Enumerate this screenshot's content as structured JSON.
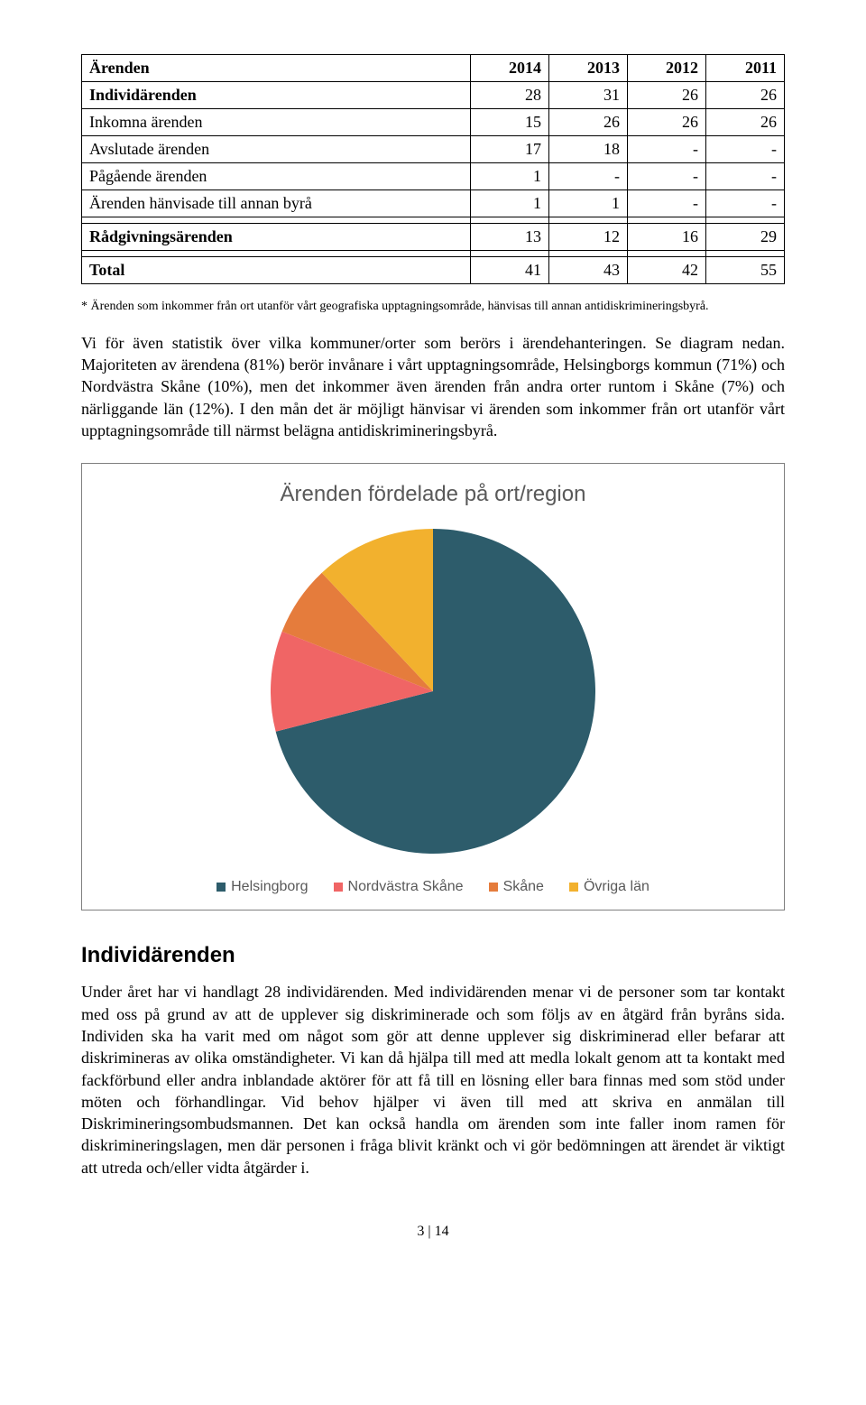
{
  "table": {
    "headers": [
      "Ärenden",
      "2014",
      "2013",
      "2012",
      "2011"
    ],
    "rows": [
      {
        "label": "Individärenden",
        "bold": true,
        "cells": [
          "28",
          "31",
          "26",
          "26"
        ]
      },
      {
        "label": "Inkomna ärenden",
        "bold": false,
        "cells": [
          "15",
          "26",
          "26",
          "26"
        ]
      },
      {
        "label": "Avslutade ärenden",
        "bold": false,
        "cells": [
          "17",
          "18",
          "-",
          "-"
        ]
      },
      {
        "label": "Pågående ärenden",
        "bold": false,
        "cells": [
          "1",
          "-",
          "-",
          "-"
        ]
      },
      {
        "label": "Ärenden hänvisade till annan byrå",
        "bold": false,
        "cells": [
          "1",
          "1",
          "-",
          "-"
        ]
      }
    ],
    "spacer_after": true,
    "section2": {
      "label": "Rådgivningsärenden",
      "bold": true,
      "cells": [
        "13",
        "12",
        "16",
        "29"
      ]
    },
    "total": {
      "label": "Total",
      "bold": true,
      "cells": [
        "41",
        "43",
        "42",
        "55"
      ]
    }
  },
  "footnote": "* Ärenden som inkommer från ort utanför vårt geografiska upptagningsområde, hänvisas till annan antidiskrimineringsbyrå.",
  "para1": "Vi för även statistik över vilka kommuner/orter som berörs i ärendehanteringen. Se diagram nedan. Majoriteten av ärendena (81%) berör invånare i vårt upptagningsområde, Helsingborgs kommun (71%) och Nordvästra Skåne (10%), men det inkommer även ärenden från andra orter runtom i Skåne (7%) och närliggande län (12%). I den mån det är möjligt hänvisar vi ärenden som inkommer från ort utanför vårt upptagningsområde till närmst belägna antidiskrimineringsbyrå.",
  "chart": {
    "type": "pie",
    "title": "Ärenden fördelade på ort/region",
    "title_fontsize": 24,
    "background_color": "#ffffff",
    "border_color": "#7f7f7f",
    "diameter": 360,
    "slices": [
      {
        "label": "Helsingborg",
        "value": 71,
        "color": "#2d5c6b"
      },
      {
        "label": "Nordvästra Skåne",
        "value": 10,
        "color": "#f06565"
      },
      {
        "label": "Skåne",
        "value": 7,
        "color": "#e57c3c"
      },
      {
        "label": "Övriga län",
        "value": 12,
        "color": "#f2b12e"
      }
    ],
    "start_angle_deg": -90,
    "legend_fontsize": 16,
    "legend_color": "#595959"
  },
  "section_heading": "Individärenden",
  "para2": "Under året har vi handlagt 28 individärenden. Med individärenden menar vi de personer som tar kontakt med oss på grund av att de upplever sig diskriminerade och som följs av en åtgärd från byråns sida. Individen ska ha varit med om något som gör att denne upplever sig diskriminerad eller befarar att diskrimineras av olika omständigheter. Vi kan då hjälpa till med att medla lokalt genom att ta kontakt med fackförbund eller andra inblandade aktörer för att få till en lösning eller bara finnas med som stöd under möten och förhandlingar. Vid behov hjälper vi även till med att skriva en anmälan till Diskrimineringsombudsmannen. Det kan också handla om ärenden som inte faller inom ramen för diskrimineringslagen, men där personen i fråga blivit kränkt och vi gör bedömningen att ärendet är viktigt att utreda och/eller vidta åtgärder i.",
  "page_number": "3 | 14"
}
